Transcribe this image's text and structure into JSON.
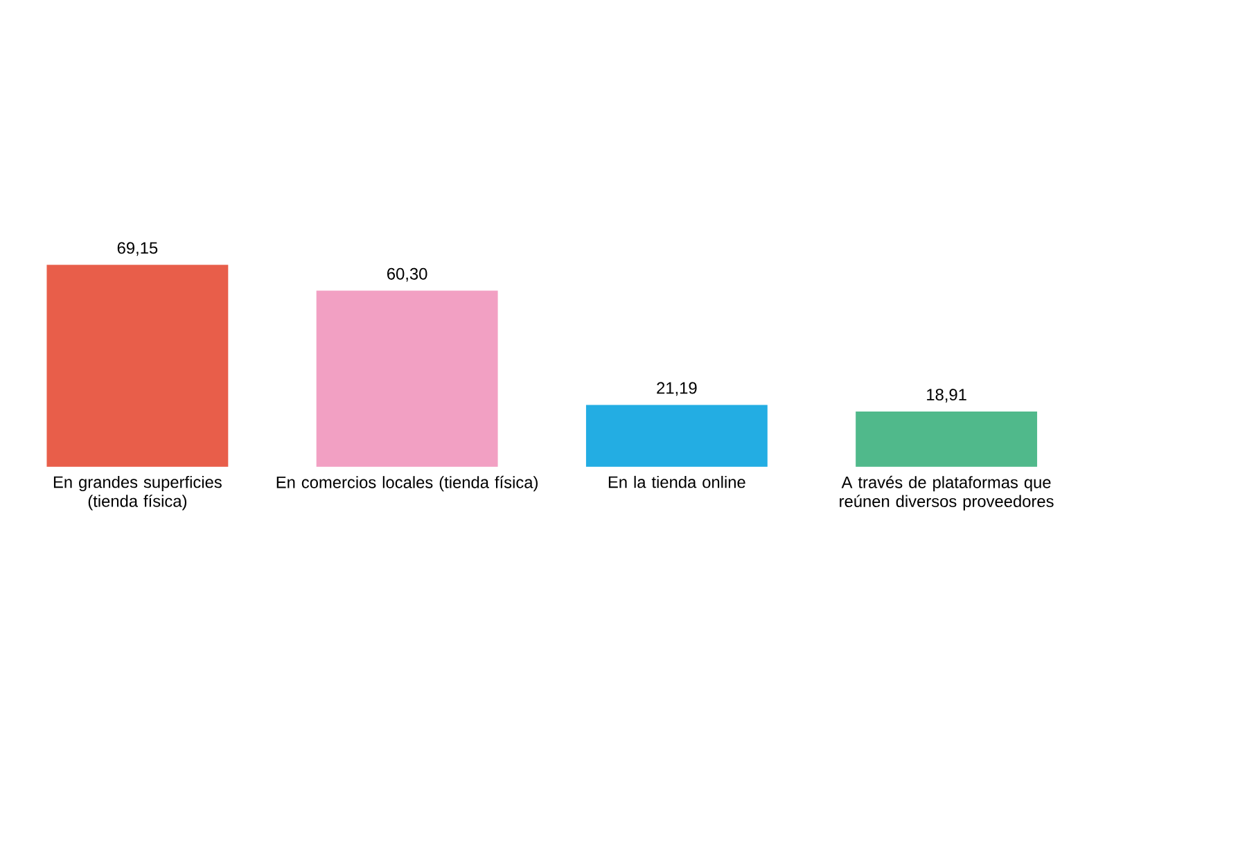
{
  "chart_data": {
    "type": "bar",
    "categories": [
      "En grandes superficies (tienda física)",
      "En comercios locales (tienda física)",
      "En la tienda online",
      "A través de plataformas que reúnen diversos proveedores"
    ],
    "values": [
      69.15,
      60.3,
      21.19,
      18.91
    ],
    "colors": [
      "#e85e4a",
      "#f2a0c3",
      "#23ade3",
      "#50b98b"
    ],
    "value_labels": [
      "69,15",
      "60,30",
      "21,19",
      "18,91"
    ]
  }
}
